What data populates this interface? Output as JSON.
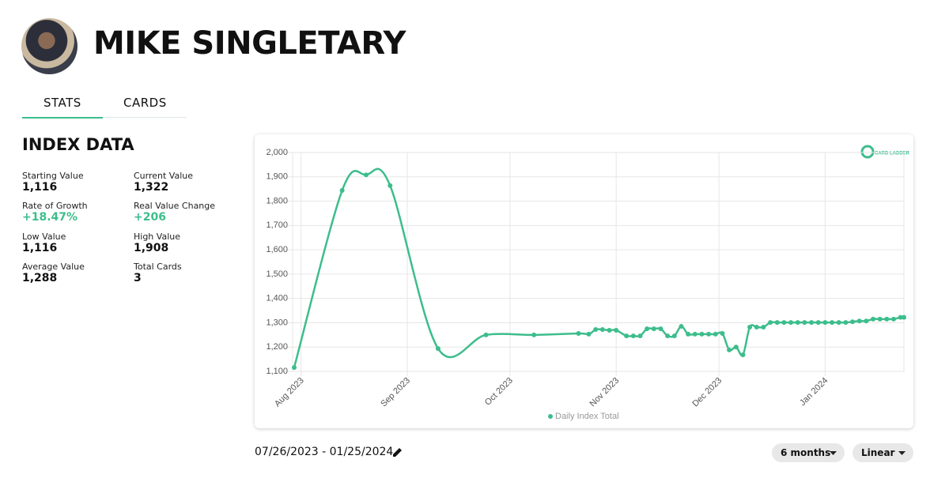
{
  "header": {
    "name": "MIKE SINGLETARY"
  },
  "tabs": [
    "STATS",
    "CARDS"
  ],
  "index_data": {
    "title": "INDEX DATA",
    "stats": [
      {
        "label": "Starting Value",
        "value": "1,116"
      },
      {
        "label": "Current Value",
        "value": "1,322"
      },
      {
        "label": "Rate of Growth",
        "value": "+18.47%"
      },
      {
        "label": "Real Value Change",
        "value": "+206"
      },
      {
        "label": "Low Value",
        "value": "1,116"
      },
      {
        "label": "High Value",
        "value": "1,908"
      },
      {
        "label": "Average Value",
        "value": "1,288"
      },
      {
        "label": "Total Cards",
        "value": "3"
      }
    ]
  },
  "logo": "CARD LADDER",
  "chart_data": {
    "type": "line",
    "x": [
      "2023-07-30",
      "2023-08-13",
      "2023-08-20",
      "2023-08-27",
      "2023-09-10",
      "2023-09-24",
      "2023-10-08",
      "2023-10-21",
      "2023-10-24",
      "2023-10-26",
      "2023-10-28",
      "2023-10-30",
      "2023-11-01",
      "2023-11-04",
      "2023-11-06",
      "2023-11-08",
      "2023-11-10",
      "2023-11-12",
      "2023-11-14",
      "2023-11-16",
      "2023-11-18",
      "2023-11-20",
      "2023-11-22",
      "2023-11-24",
      "2023-11-26",
      "2023-11-28",
      "2023-11-30",
      "2023-12-02",
      "2023-12-04",
      "2023-12-06",
      "2023-12-08",
      "2023-12-10",
      "2023-12-12",
      "2023-12-14",
      "2023-12-16",
      "2023-12-18",
      "2023-12-20",
      "2023-12-22",
      "2023-12-24",
      "2023-12-26",
      "2023-12-28",
      "2023-12-30",
      "2024-01-01",
      "2024-01-03",
      "2024-01-05",
      "2024-01-07",
      "2024-01-09",
      "2024-01-11",
      "2024-01-13",
      "2024-01-15",
      "2024-01-17",
      "2024-01-19",
      "2024-01-21",
      "2024-01-23",
      "2024-01-24"
    ],
    "series": [
      {
        "name": "Daily Index Total",
        "color": "#3dbd8c",
        "values": [
          1116,
          1844,
          1908,
          1864,
          1194,
          1250,
          1250,
          1256,
          1253,
          1272,
          1272,
          1269,
          1269,
          1246,
          1246,
          1246,
          1275,
          1275,
          1275,
          1246,
          1246,
          1285,
          1253,
          1253,
          1253,
          1253,
          1253,
          1256,
          1188,
          1200,
          1168,
          1282,
          1282,
          1282,
          1301,
          1301,
          1301,
          1301,
          1301,
          1301,
          1301,
          1301,
          1301,
          1301,
          1301,
          1301,
          1304,
          1307,
          1307,
          1315,
          1315,
          1315,
          1315,
          1322,
          1322
        ]
      }
    ],
    "xlim": [
      "2023-07-30",
      "2024-01-24"
    ],
    "xticks": [
      {
        "value": "2023-08-01",
        "label": "Aug 2023"
      },
      {
        "value": "2023-09-01",
        "label": "Sep 2023"
      },
      {
        "value": "2023-10-01",
        "label": "Oct 2023"
      },
      {
        "value": "2023-11-01",
        "label": "Nov 2023"
      },
      {
        "value": "2023-12-01",
        "label": "Dec 2023"
      },
      {
        "value": "2024-01-01",
        "label": "Jan 2024"
      }
    ],
    "ylim": [
      1100,
      2000
    ],
    "yticks": [
      {
        "value": 1100,
        "label": "1,100"
      },
      {
        "value": 1200,
        "label": "1,200"
      },
      {
        "value": 1300,
        "label": "1,300"
      },
      {
        "value": 1400,
        "label": "1,400"
      },
      {
        "value": 1500,
        "label": "1,500"
      },
      {
        "value": 1600,
        "label": "1,600"
      },
      {
        "value": 1700,
        "label": "1,700"
      },
      {
        "value": 1800,
        "label": "1,800"
      },
      {
        "value": 1900,
        "label": "1,900"
      },
      {
        "value": 2000,
        "label": "2,000"
      }
    ],
    "grid": true,
    "legend": "bottom"
  },
  "date_range": "07/26/2023 - 01/25/2024",
  "controls": [
    "6 months",
    "Linear"
  ]
}
